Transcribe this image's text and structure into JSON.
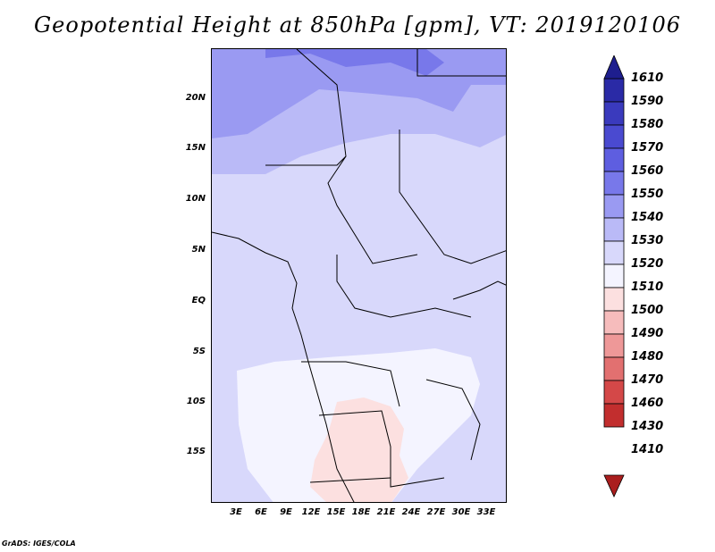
{
  "title": "Geopotential Height at 850hPa [gpm], VT: 2019120106",
  "credit": "GrADS: IGES/COLA",
  "map": {
    "variable": "Geopotential Height",
    "level": "850hPa",
    "units": "gpm",
    "valid_time": "2019120106",
    "lat_labels": [
      "20N",
      "15N",
      "10N",
      "5N",
      "EQ",
      "5S",
      "10S",
      "15S"
    ],
    "lon_labels": [
      "3E",
      "6E",
      "9E",
      "12E",
      "15E",
      "18E",
      "21E",
      "24E",
      "27E",
      "30E",
      "33E"
    ]
  },
  "colorbar": {
    "levels": [
      "1610",
      "1590",
      "1580",
      "1570",
      "1560",
      "1550",
      "1540",
      "1530",
      "1520",
      "1510",
      "1500",
      "1490",
      "1480",
      "1470",
      "1460",
      "1430",
      "1410"
    ],
    "colors": [
      "#1e1e8e",
      "#2a2aa6",
      "#3a3abd",
      "#4a4ad0",
      "#5e5ee0",
      "#7878ea",
      "#9a9af2",
      "#babaf7",
      "#d8d8fb",
      "#f4f4ff",
      "#fce0e0",
      "#f6bcbc",
      "#ee9898",
      "#e27070",
      "#d44848",
      "#c22e2e",
      "#aa1e1e"
    ]
  }
}
